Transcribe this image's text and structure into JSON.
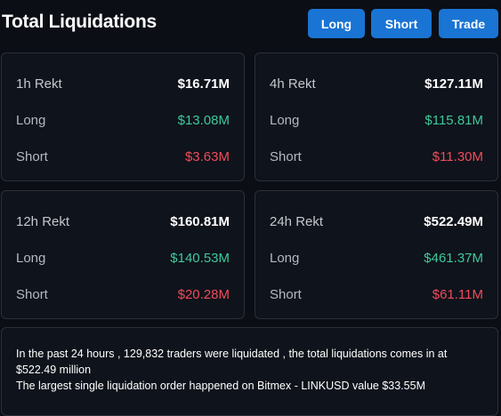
{
  "header": {
    "title": "Total Liquidations",
    "buttons": {
      "long": "Long",
      "short": "Short",
      "trade": "Trade"
    },
    "button_color": "#1a74d3"
  },
  "cards": [
    {
      "period": "1h Rekt",
      "total": "$16.71M",
      "long_label": "Long",
      "long": "$13.08M",
      "short_label": "Short",
      "short": "$3.63M"
    },
    {
      "period": "4h Rekt",
      "total": "$127.11M",
      "long_label": "Long",
      "long": "$115.81M",
      "short_label": "Short",
      "short": "$11.30M"
    },
    {
      "period": "12h Rekt",
      "total": "$160.81M",
      "long_label": "Long",
      "long": "$140.53M",
      "short_label": "Short",
      "short": "$20.28M"
    },
    {
      "period": "24h Rekt",
      "total": "$522.49M",
      "long_label": "Long",
      "long": "$461.37M",
      "short_label": "Short",
      "short": "$61.11M"
    }
  ],
  "colors": {
    "long": "#3ec99c",
    "short": "#f04b5b",
    "background": "#0b0e15"
  },
  "summary": {
    "line1": "In the past 24 hours , 129,832 traders were liquidated , the total liquidations comes in at $522.49 million",
    "line2": "The largest single liquidation order happened on Bitmex - LINKUSD value $33.55M"
  }
}
